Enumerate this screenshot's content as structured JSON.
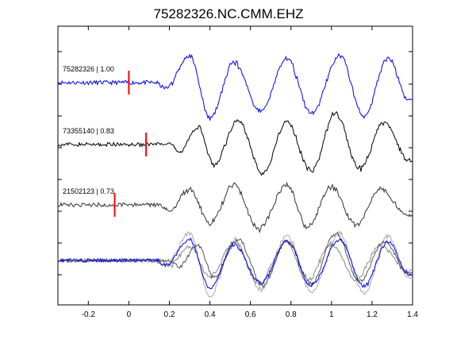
{
  "chart_data": {
    "type": "line",
    "title": "75282326.NC.CMM.EHZ",
    "xlabel": "",
    "ylabel": "",
    "xlim": [
      -0.35,
      1.4
    ],
    "x_ticks": [
      -0.2,
      0,
      0.2,
      0.4,
      0.6,
      0.8,
      1,
      1.2,
      1.4
    ],
    "x_tick_labels": [
      "-0.2",
      "0",
      "0.2",
      "0.4",
      "0.6",
      "0.8",
      "1",
      "1.2",
      "1.4"
    ],
    "grid": false,
    "legend": "none",
    "colors": {
      "template": "#0000ff",
      "match": "#000000",
      "pick": "#ff0000",
      "overlay_other": "#888888"
    },
    "traces": [
      {
        "label": "75282326 | 1.00",
        "event_id": "75282326",
        "cc": 1.0,
        "pick_time": 0.0,
        "color": "#0000ff",
        "peaks": [
          [
            0.18,
            -0.25
          ],
          [
            0.3,
            1.2
          ],
          [
            0.4,
            -1.6
          ],
          [
            0.52,
            0.9
          ],
          [
            0.65,
            -1.3
          ],
          [
            0.78,
            1.1
          ],
          [
            0.9,
            -1.4
          ],
          [
            1.04,
            1.2
          ],
          [
            1.16,
            -1.5
          ],
          [
            1.28,
            1.1
          ],
          [
            1.38,
            -0.8
          ]
        ]
      },
      {
        "label": "73355140 | 0.83",
        "event_id": "73355140",
        "cc": 0.83,
        "pick_time": 0.085,
        "color": "#000000",
        "peaks": [
          [
            0.25,
            -0.3
          ],
          [
            0.34,
            0.8
          ],
          [
            0.42,
            -0.9
          ],
          [
            0.54,
            1.1
          ],
          [
            0.66,
            -1.3
          ],
          [
            0.78,
            1.0
          ],
          [
            0.9,
            -1.2
          ],
          [
            1.02,
            1.4
          ],
          [
            1.14,
            -1.1
          ],
          [
            1.26,
            1.0
          ],
          [
            1.38,
            -0.7
          ]
        ]
      },
      {
        "label": "21502123 | 0.73",
        "event_id": "21502123",
        "cc": 0.73,
        "pick_time": -0.07,
        "color": "#333333",
        "peaks": [
          [
            0.2,
            -0.25
          ],
          [
            0.3,
            0.7
          ],
          [
            0.4,
            -0.8
          ],
          [
            0.52,
            0.9
          ],
          [
            0.64,
            -1.1
          ],
          [
            0.78,
            0.9
          ],
          [
            0.88,
            -1.0
          ],
          [
            1.0,
            0.8
          ],
          [
            1.12,
            -0.9
          ],
          [
            1.24,
            0.7
          ],
          [
            1.38,
            -0.5
          ]
        ]
      }
    ],
    "overlay": {
      "series_count": 4,
      "colors": [
        "#0000ff",
        "#555555",
        "#888888",
        "#aaaaaa"
      ]
    }
  }
}
